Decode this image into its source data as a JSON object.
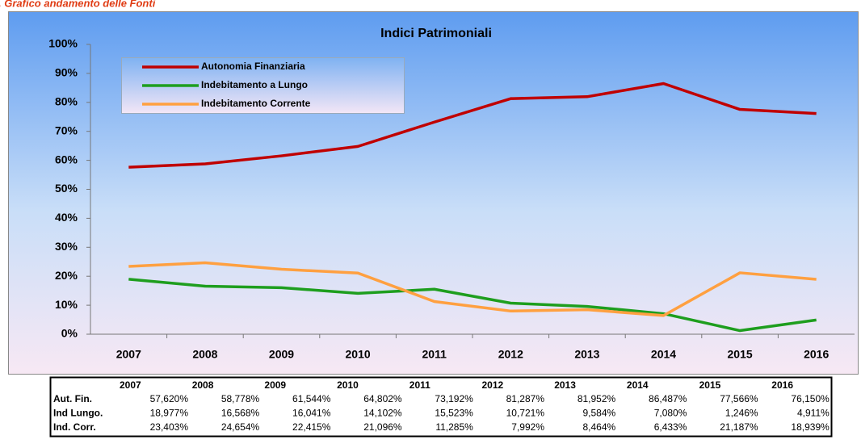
{
  "heading": ". Grafico andamento delle Fonti",
  "chart_data": {
    "type": "line",
    "title": "Indici Patrimoniali",
    "categories": [
      "2007",
      "2008",
      "2009",
      "2010",
      "2011",
      "2012",
      "2013",
      "2014",
      "2015",
      "2016"
    ],
    "series": [
      {
        "name": "Autonomia Finanziaria",
        "color": "#c00000",
        "values": [
          57.62,
          58.778,
          61.544,
          64.802,
          73.192,
          81.287,
          81.952,
          86.487,
          77.566,
          76.15
        ]
      },
      {
        "name": "Indebitamento a Lungo",
        "color": "#1e9e1e",
        "values": [
          18.977,
          16.568,
          16.041,
          14.102,
          15.523,
          10.721,
          9.584,
          7.08,
          1.246,
          4.911
        ]
      },
      {
        "name": "Indebitamento Corrente",
        "color": "#ffa040",
        "values": [
          23.403,
          24.654,
          22.415,
          21.096,
          11.285,
          7.992,
          8.464,
          6.433,
          21.187,
          18.939
        ]
      }
    ],
    "ylim": [
      0,
      100
    ],
    "yticks": [
      {
        "value": 0,
        "label": "0%"
      },
      {
        "value": 10,
        "label": "10%"
      },
      {
        "value": 20,
        "label": "20%"
      },
      {
        "value": 30,
        "label": "30%"
      },
      {
        "value": 40,
        "label": "40%"
      },
      {
        "value": 50,
        "label": "50%"
      },
      {
        "value": 60,
        "label": "60%"
      },
      {
        "value": 70,
        "label": "70%"
      },
      {
        "value": 80,
        "label": "80%"
      },
      {
        "value": 90,
        "label": "90%"
      },
      {
        "value": 100,
        "label": "100%"
      }
    ],
    "legend": "upper left",
    "grid": false
  },
  "table": {
    "header": [
      "2007",
      "2008",
      "2009",
      "2010",
      "2011",
      "2012",
      "2013",
      "2014",
      "2015",
      "2016"
    ],
    "rows": [
      [
        "Aut. Fin.",
        "57,620%",
        "58,778%",
        "61,544%",
        "64,802%",
        "73,192%",
        "81,287%",
        "81,952%",
        "86,487%",
        "77,566%",
        "76,150%"
      ],
      [
        "Ind Lungo.",
        "18,977%",
        "16,568%",
        "16,041%",
        "14,102%",
        "15,523%",
        "10,721%",
        "9,584%",
        "7,080%",
        "1,246%",
        "4,911%"
      ],
      [
        "Ind. Corr.",
        "23,403%",
        "24,654%",
        "22,415%",
        "21,096%",
        "11,285%",
        "7,992%",
        "8,464%",
        "6,433%",
        "21,187%",
        "18,939%"
      ]
    ]
  }
}
